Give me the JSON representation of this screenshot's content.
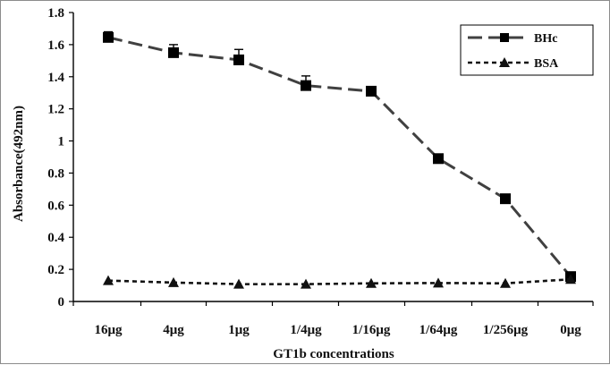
{
  "chart_data": {
    "type": "line",
    "title": "",
    "xlabel": "GT1b concentrations",
    "ylabel": "Absorbance(492nm)",
    "categories": [
      "16μg",
      "4μg",
      "1μg",
      "1/4μg",
      "1/16μg",
      "1/64μg",
      "1/256μg",
      "0μg"
    ],
    "ylim": [
      0,
      1.8
    ],
    "yticks": [
      "0",
      "0.2",
      "0.4",
      "0.6",
      "0.8",
      "1",
      "1.2",
      "1.4",
      "1.6",
      "1.8"
    ],
    "ytick_values": [
      0,
      0.2,
      0.4,
      0.6,
      0.8,
      1,
      1.2,
      1.4,
      1.6,
      1.8
    ],
    "grid": false,
    "legend_position": "top-right",
    "series": [
      {
        "name": "BHc",
        "marker": "square",
        "line_style": "long-dash",
        "color": "#404040",
        "values": [
          1.645,
          1.55,
          1.505,
          1.345,
          1.31,
          0.89,
          0.64,
          0.155
        ],
        "error": [
          0.035,
          0.05,
          0.065,
          0.06,
          0.02,
          0.02,
          0.015,
          0.01
        ]
      },
      {
        "name": "BSA",
        "marker": "triangle",
        "line_style": "short-dash",
        "color": "#111111",
        "values": [
          0.13,
          0.118,
          0.108,
          0.108,
          0.113,
          0.115,
          0.113,
          0.138
        ],
        "error": [
          0,
          0,
          0,
          0,
          0,
          0,
          0,
          0
        ]
      }
    ]
  }
}
